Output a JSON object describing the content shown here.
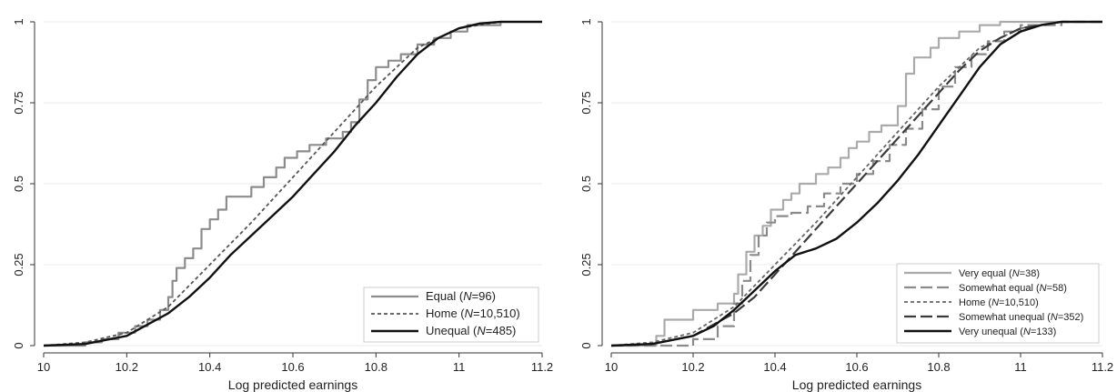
{
  "chart_data": [
    {
      "type": "line",
      "xlabel": "Log predicted earnings",
      "ylabel": "",
      "xlim": [
        10.0,
        11.2
      ],
      "ylim": [
        0,
        1
      ],
      "xticks": [
        "10",
        "10.2",
        "10.4",
        "10.6",
        "10.8",
        "11",
        "11.2"
      ],
      "yticks": [
        "0",
        "0.25",
        "0.5",
        "0.75",
        "1"
      ],
      "grid": true,
      "legend_position": "bottom-right",
      "series": [
        {
          "legend_prefix": "Equal (",
          "legend_n": "N",
          "legend_suffix": "=96)",
          "color": "#8c8c8c",
          "style": "solid",
          "width": 2.2,
          "step": true,
          "x": [
            10.0,
            10.1,
            10.14,
            10.18,
            10.22,
            10.25,
            10.28,
            10.3,
            10.31,
            10.32,
            10.34,
            10.36,
            10.38,
            10.4,
            10.42,
            10.44,
            10.48,
            10.5,
            10.53,
            10.56,
            10.58,
            10.61,
            10.64,
            10.68,
            10.72,
            10.74,
            10.76,
            10.78,
            10.8,
            10.83,
            10.86,
            10.9,
            10.94,
            10.98,
            11.02,
            11.1
          ],
          "y": [
            0.0,
            0.01,
            0.02,
            0.04,
            0.06,
            0.08,
            0.11,
            0.15,
            0.2,
            0.24,
            0.27,
            0.3,
            0.36,
            0.39,
            0.42,
            0.46,
            0.46,
            0.49,
            0.52,
            0.55,
            0.58,
            0.6,
            0.62,
            0.64,
            0.66,
            0.69,
            0.76,
            0.82,
            0.86,
            0.88,
            0.9,
            0.93,
            0.95,
            0.97,
            0.99,
            1.0
          ]
        },
        {
          "legend_prefix": "Home (",
          "legend_n": "N",
          "legend_suffix": "=10,510)",
          "color": "#555555",
          "style": "dash",
          "width": 1.8,
          "step": false,
          "x": [
            10.0,
            10.1,
            10.2,
            10.3,
            10.4,
            10.5,
            10.6,
            10.7,
            10.8,
            10.9,
            11.0,
            11.1,
            11.2
          ],
          "y": [
            0.0,
            0.01,
            0.04,
            0.12,
            0.25,
            0.38,
            0.52,
            0.66,
            0.8,
            0.92,
            0.98,
            1.0,
            1.0
          ]
        },
        {
          "legend_prefix": "Unequal (",
          "legend_n": "N",
          "legend_suffix": "=485)",
          "color": "#111111",
          "style": "solid",
          "width": 2.4,
          "step": false,
          "x": [
            10.0,
            10.1,
            10.2,
            10.3,
            10.35,
            10.4,
            10.45,
            10.5,
            10.55,
            10.6,
            10.65,
            10.7,
            10.75,
            10.8,
            10.85,
            10.9,
            10.95,
            11.0,
            11.05,
            11.1,
            11.2
          ],
          "y": [
            0.0,
            0.005,
            0.03,
            0.1,
            0.15,
            0.21,
            0.28,
            0.34,
            0.4,
            0.46,
            0.53,
            0.6,
            0.68,
            0.75,
            0.83,
            0.9,
            0.95,
            0.98,
            0.995,
            1.0,
            1.0
          ]
        }
      ]
    },
    {
      "type": "line",
      "xlabel": "Log predicted earnings",
      "ylabel": "",
      "xlim": [
        10.0,
        11.2
      ],
      "ylim": [
        0,
        1
      ],
      "xticks": [
        "10",
        "10.2",
        "10.4",
        "10.6",
        "10.8",
        "11",
        "11.2"
      ],
      "yticks": [
        "0",
        "0.25",
        "0.5",
        "0.75",
        "1"
      ],
      "grid": true,
      "legend_position": "bottom-right",
      "series": [
        {
          "legend_prefix": "Very equal (",
          "legend_n": "N",
          "legend_suffix": "=38)",
          "color": "#aaaaaa",
          "style": "solid",
          "width": 2.2,
          "step": true,
          "x": [
            10.0,
            10.11,
            10.13,
            10.2,
            10.26,
            10.3,
            10.31,
            10.33,
            10.35,
            10.37,
            10.39,
            10.42,
            10.44,
            10.46,
            10.5,
            10.53,
            10.56,
            10.58,
            10.6,
            10.63,
            10.66,
            10.7,
            10.72,
            10.74,
            10.78,
            10.8,
            10.85,
            10.9,
            10.95,
            11.1
          ],
          "y": [
            0.0,
            0.03,
            0.08,
            0.11,
            0.13,
            0.16,
            0.22,
            0.29,
            0.34,
            0.37,
            0.42,
            0.45,
            0.47,
            0.5,
            0.53,
            0.55,
            0.58,
            0.61,
            0.63,
            0.66,
            0.68,
            0.74,
            0.84,
            0.89,
            0.92,
            0.95,
            0.97,
            0.99,
            1.0,
            1.0
          ]
        },
        {
          "legend_prefix": "Somewhat equal (",
          "legend_n": "N",
          "legend_suffix": "=58)",
          "color": "#8a8a8a",
          "style": "longdash",
          "width": 2.2,
          "step": true,
          "x": [
            10.0,
            10.2,
            10.26,
            10.3,
            10.32,
            10.34,
            10.36,
            10.38,
            10.4,
            10.44,
            10.48,
            10.52,
            10.56,
            10.6,
            10.64,
            10.68,
            10.72,
            10.76,
            10.8,
            10.84,
            10.88,
            10.92,
            10.96,
            11.0,
            11.1
          ],
          "y": [
            0.0,
            0.02,
            0.06,
            0.13,
            0.2,
            0.28,
            0.34,
            0.38,
            0.4,
            0.41,
            0.43,
            0.47,
            0.5,
            0.53,
            0.57,
            0.62,
            0.67,
            0.73,
            0.8,
            0.86,
            0.9,
            0.94,
            0.97,
            0.99,
            1.0
          ]
        },
        {
          "legend_prefix": "Home (",
          "legend_n": "N",
          "legend_suffix": "=10,510)",
          "color": "#666666",
          "style": "dash",
          "width": 1.8,
          "step": false,
          "x": [
            10.0,
            10.1,
            10.2,
            10.3,
            10.4,
            10.5,
            10.6,
            10.7,
            10.8,
            10.9,
            11.0,
            11.1,
            11.2
          ],
          "y": [
            0.0,
            0.01,
            0.04,
            0.12,
            0.25,
            0.38,
            0.52,
            0.66,
            0.8,
            0.92,
            0.98,
            1.0,
            1.0
          ]
        },
        {
          "legend_prefix": "Somewhat unequal (",
          "legend_n": "N",
          "legend_suffix": "=352)",
          "color": "#3a3a3a",
          "style": "longdash",
          "width": 2.2,
          "step": false,
          "x": [
            10.0,
            10.1,
            10.2,
            10.3,
            10.35,
            10.4,
            10.45,
            10.5,
            10.55,
            10.6,
            10.65,
            10.7,
            10.75,
            10.8,
            10.85,
            10.9,
            10.95,
            11.0,
            11.1,
            11.2
          ],
          "y": [
            0.0,
            0.005,
            0.03,
            0.1,
            0.15,
            0.22,
            0.29,
            0.36,
            0.43,
            0.5,
            0.57,
            0.64,
            0.71,
            0.78,
            0.85,
            0.91,
            0.95,
            0.98,
            1.0,
            1.0
          ]
        },
        {
          "legend_prefix": "Very unequal (",
          "legend_n": "N",
          "legend_suffix": "=133)",
          "color": "#111111",
          "style": "solid",
          "width": 2.4,
          "step": false,
          "x": [
            10.0,
            10.1,
            10.2,
            10.25,
            10.3,
            10.35,
            10.4,
            10.45,
            10.5,
            10.55,
            10.6,
            10.65,
            10.7,
            10.75,
            10.8,
            10.85,
            10.9,
            10.95,
            11.0,
            11.05,
            11.1,
            11.2
          ],
          "y": [
            0.0,
            0.005,
            0.03,
            0.06,
            0.11,
            0.17,
            0.23,
            0.28,
            0.3,
            0.33,
            0.38,
            0.44,
            0.51,
            0.59,
            0.68,
            0.77,
            0.86,
            0.93,
            0.97,
            0.99,
            1.0,
            1.0
          ]
        }
      ]
    }
  ]
}
